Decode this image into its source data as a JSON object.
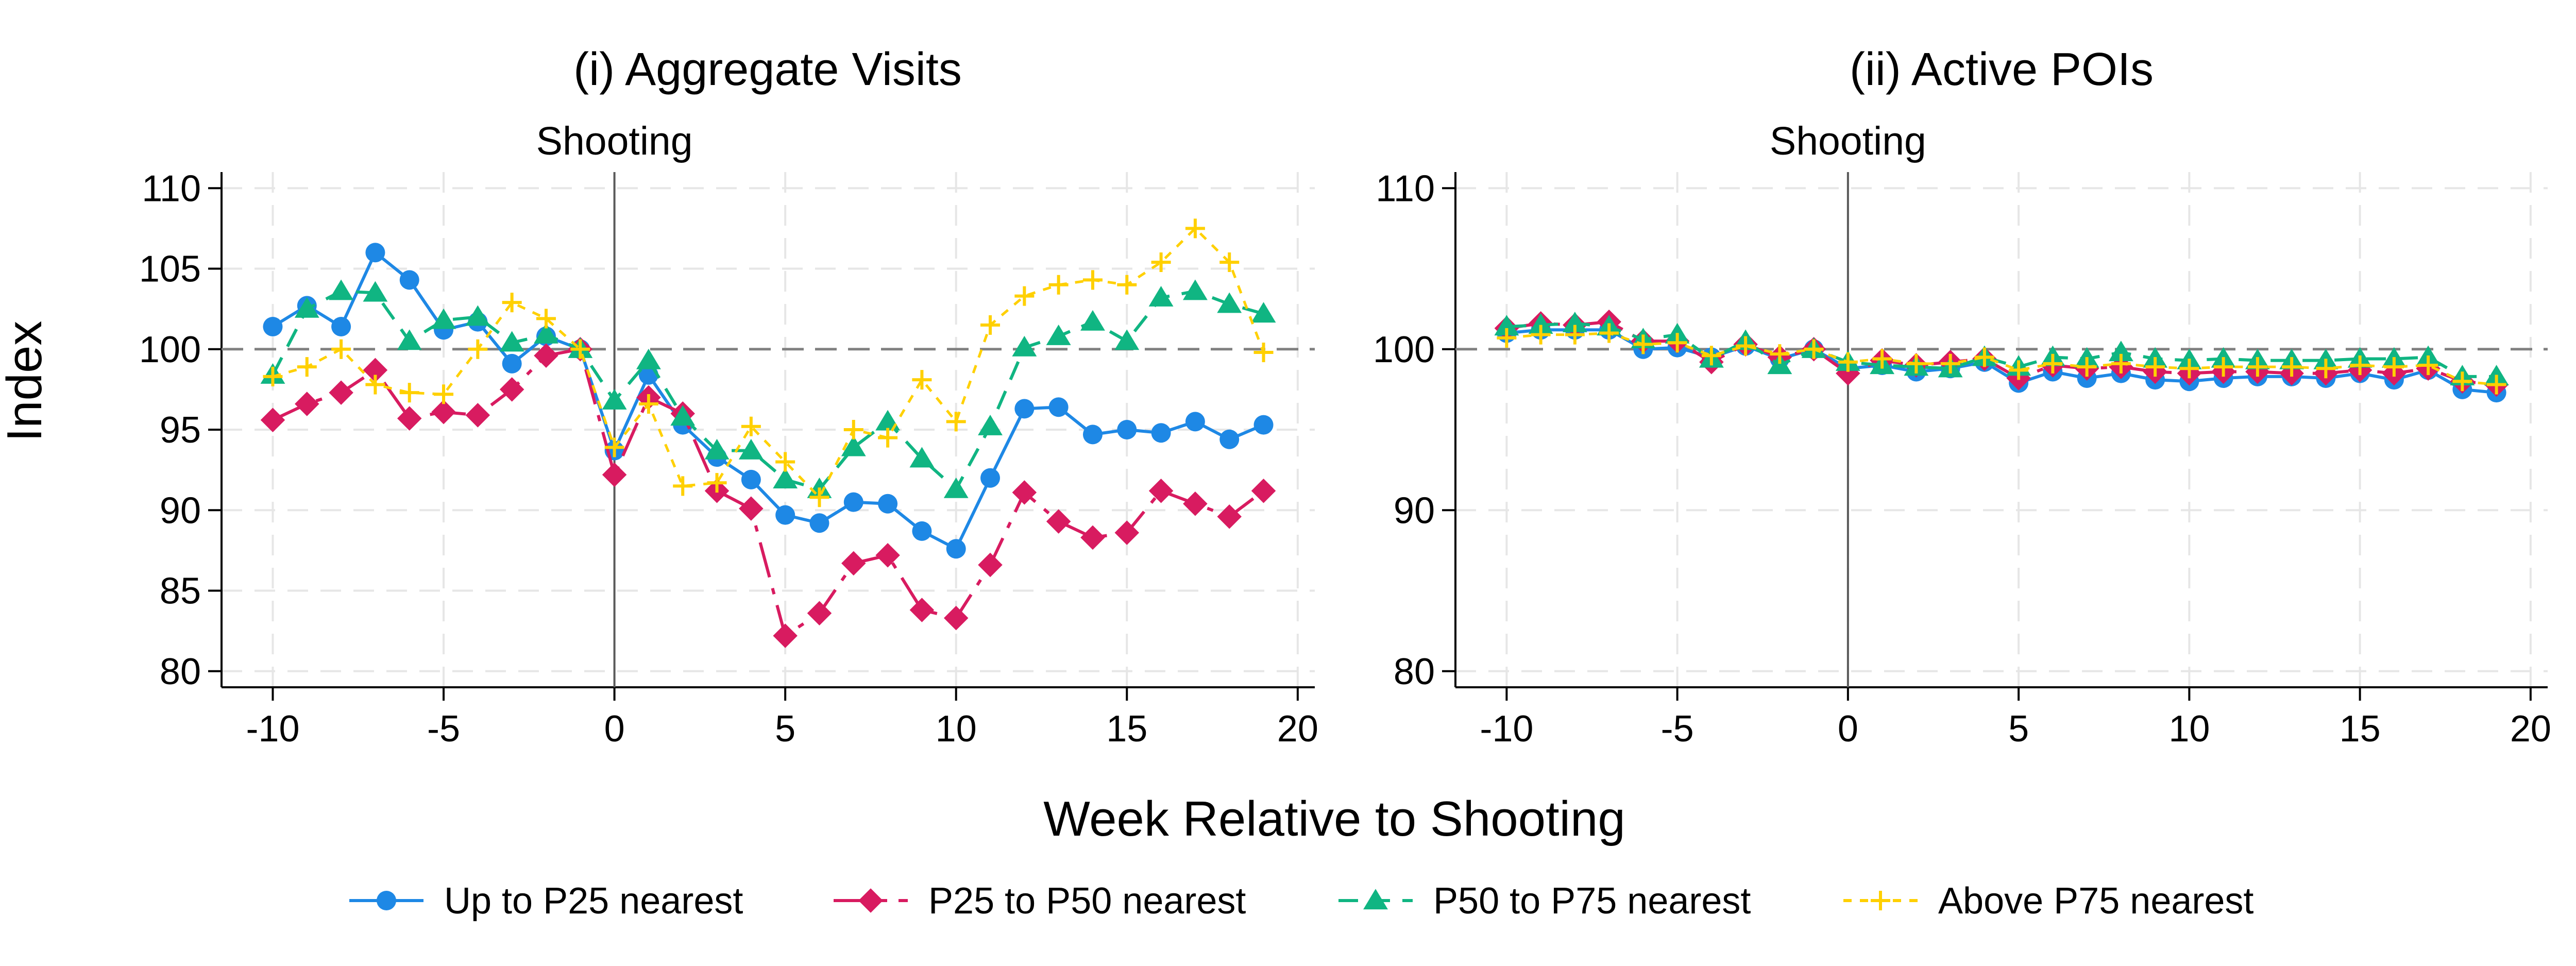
{
  "figure": {
    "y_axis_title": "Index",
    "x_axis_title": "Week Relative to Shooting",
    "legend": [
      {
        "label": "Up to P25 nearest",
        "color": "#1e88e5",
        "marker": "circle",
        "dash": "solid"
      },
      {
        "label": "P25 to P50 nearest",
        "color": "#d81b60",
        "marker": "diamond",
        "dash": "longdash"
      },
      {
        "label": "P50 to P75 nearest",
        "color": "#10b582",
        "marker": "triangle",
        "dash": "dash"
      },
      {
        "label": "Above P75 nearest",
        "color": "#ffd000",
        "marker": "plus",
        "dash": "shortdash"
      }
    ]
  },
  "chart_data": [
    {
      "type": "line",
      "title": "(i) Aggregate Visits",
      "vline_label": "Shooting",
      "vline_x": 0,
      "hline_y": 100,
      "xlabel": "Week Relative to Shooting",
      "ylabel": "Index",
      "xlim": [
        -11.5,
        20.5
      ],
      "ylim": [
        79,
        111
      ],
      "xticks": [
        -10,
        -5,
        0,
        5,
        10,
        15,
        20
      ],
      "xtick_labels": [
        "-10",
        "-5",
        "0",
        "5",
        "10",
        "15",
        "20"
      ],
      "yticks": [
        80,
        85,
        90,
        95,
        100,
        105,
        110
      ],
      "ytick_labels": [
        "80",
        "85",
        "90",
        "95",
        "100",
        "105",
        "110"
      ],
      "x": [
        -10,
        -9,
        -8,
        -7,
        -6,
        -5,
        -4,
        -3,
        -2,
        -1,
        0,
        1,
        2,
        3,
        4,
        5,
        6,
        7,
        8,
        9,
        10,
        11,
        12,
        13,
        14,
        15,
        16,
        17,
        18,
        19
      ],
      "series": [
        {
          "name": "Up to P25 nearest",
          "values": [
            101.4,
            102.7,
            101.4,
            106.0,
            104.3,
            101.2,
            101.7,
            99.1,
            100.8,
            100.0,
            93.7,
            98.4,
            95.3,
            93.3,
            91.9,
            89.7,
            89.2,
            90.5,
            90.4,
            88.7,
            87.6,
            92.0,
            96.3,
            96.4,
            94.7,
            95.0,
            94.8,
            95.5,
            94.4,
            95.3
          ]
        },
        {
          "name": "P25 to P50 nearest",
          "values": [
            95.6,
            96.6,
            97.3,
            98.7,
            95.7,
            96.1,
            95.9,
            97.5,
            99.6,
            100.0,
            92.2,
            97.0,
            96.0,
            91.2,
            90.1,
            82.2,
            83.6,
            86.7,
            87.2,
            83.8,
            83.3,
            86.6,
            91.1,
            89.3,
            88.3,
            88.6,
            91.2,
            90.4,
            89.6,
            91.2
          ]
        },
        {
          "name": "P50 to P75 nearest",
          "values": [
            98.4,
            102.5,
            103.6,
            103.5,
            100.5,
            101.8,
            102.0,
            100.4,
            100.9,
            100.0,
            96.8,
            99.3,
            95.8,
            93.7,
            93.7,
            91.9,
            91.3,
            93.9,
            95.5,
            93.2,
            91.3,
            95.2,
            100.1,
            100.8,
            101.7,
            100.5,
            103.2,
            103.6,
            102.8,
            102.2
          ]
        },
        {
          "name": "Above P75 nearest",
          "values": [
            98.3,
            98.9,
            100.0,
            97.8,
            97.3,
            97.2,
            100.0,
            102.9,
            101.9,
            100.0,
            93.9,
            96.6,
            91.5,
            91.7,
            95.2,
            93.0,
            90.8,
            95.0,
            94.5,
            98.1,
            95.5,
            101.5,
            103.3,
            104.0,
            104.3,
            104.0,
            105.4,
            107.5,
            105.4,
            99.8
          ]
        }
      ]
    },
    {
      "type": "line",
      "title": "(ii) Active POIs",
      "vline_label": "Shooting",
      "vline_x": 0,
      "hline_y": 100,
      "xlabel": "Week Relative to Shooting",
      "ylabel": "Index",
      "xlim": [
        -11.5,
        20.5
      ],
      "ylim": [
        79,
        111
      ],
      "xticks": [
        -10,
        -5,
        0,
        5,
        10,
        15,
        20
      ],
      "xtick_labels": [
        "-10",
        "-5",
        "0",
        "5",
        "10",
        "15",
        "20"
      ],
      "yticks": [
        80,
        90,
        100,
        110
      ],
      "ytick_labels": [
        "80",
        "90",
        "100",
        "110"
      ],
      "x": [
        -10,
        -9,
        -8,
        -7,
        -6,
        -5,
        -4,
        -3,
        -2,
        -1,
        0,
        1,
        2,
        3,
        4,
        5,
        6,
        7,
        8,
        9,
        10,
        11,
        12,
        13,
        14,
        15,
        16,
        17,
        18,
        19
      ],
      "series": [
        {
          "name": "Up to P25 nearest",
          "values": [
            101.0,
            101.2,
            101.2,
            101.2,
            100.0,
            100.1,
            99.5,
            100.2,
            99.4,
            100.0,
            98.8,
            99.0,
            98.6,
            98.8,
            99.2,
            97.9,
            98.6,
            98.2,
            98.5,
            98.1,
            98.0,
            98.2,
            98.3,
            98.3,
            98.2,
            98.5,
            98.1,
            98.7,
            97.5,
            97.3
          ]
        },
        {
          "name": "P25 to P50 nearest",
          "values": [
            101.3,
            101.6,
            101.5,
            101.7,
            100.5,
            100.5,
            99.2,
            100.3,
            99.5,
            100.0,
            98.5,
            99.3,
            99.0,
            99.2,
            99.4,
            98.2,
            99.0,
            98.8,
            98.9,
            98.6,
            98.5,
            98.6,
            98.6,
            98.5,
            98.5,
            98.7,
            98.5,
            98.8,
            98.0,
            97.8
          ]
        },
        {
          "name": "P50 to P75 nearest",
          "values": [
            101.4,
            101.5,
            101.6,
            101.4,
            100.6,
            100.9,
            99.4,
            100.5,
            99.0,
            100.0,
            99.2,
            99.0,
            98.9,
            98.8,
            99.5,
            98.9,
            99.5,
            99.4,
            99.8,
            99.4,
            99.3,
            99.4,
            99.3,
            99.3,
            99.3,
            99.4,
            99.4,
            99.5,
            98.3,
            98.3
          ]
        },
        {
          "name": "Above P75 nearest",
          "values": [
            100.7,
            100.9,
            100.9,
            101.0,
            100.3,
            100.4,
            99.6,
            100.2,
            99.7,
            100.0,
            99.2,
            99.4,
            99.1,
            99.1,
            99.5,
            98.7,
            99.1,
            98.9,
            99.1,
            98.9,
            98.8,
            98.9,
            98.9,
            98.9,
            98.8,
            99.0,
            98.9,
            99.0,
            98.0,
            97.8
          ]
        }
      ]
    }
  ]
}
